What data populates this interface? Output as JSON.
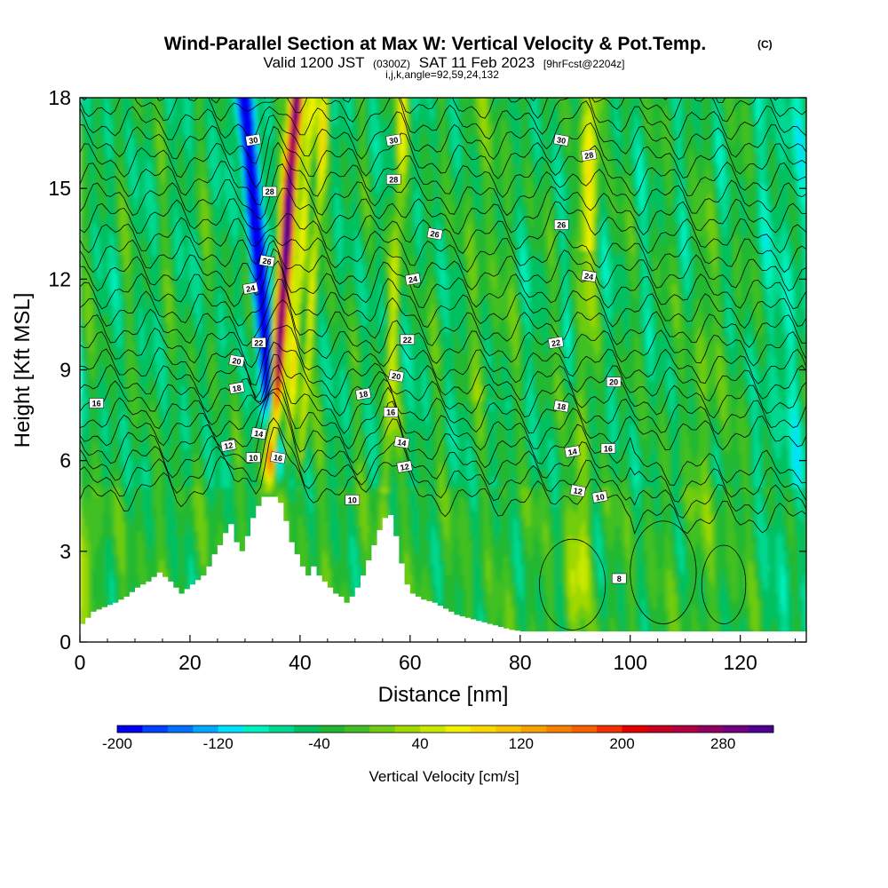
{
  "chart_data": {
    "type": "heatmap",
    "title": "Wind-Parallel Section at Max W: Vertical Velocity & Pot.Temp.",
    "title_mark": "(C)",
    "subtitle": {
      "main_a": "Valid 1200 JST",
      "zulu": "(0300Z)",
      "main_b": "SAT 11 Feb 2023",
      "forecast": "[9hrFcst@2204z]",
      "indices": "i,j,k,angle=92,59,24,132"
    },
    "xlabel": "Distance [nm]",
    "ylabel": "Height [Kft MSL]",
    "xlim": [
      0,
      132
    ],
    "ylim": [
      0,
      18
    ],
    "x_ticks": [
      0,
      20,
      40,
      60,
      80,
      100,
      120
    ],
    "y_ticks": [
      0,
      3,
      6,
      9,
      12,
      15,
      18
    ],
    "grid": false,
    "colorbar": {
      "label": "Vertical Velocity [cm/s]",
      "placement": "bottom",
      "min": -200,
      "max": 320,
      "step": 20,
      "tick_labels": [
        "-200",
        "-120",
        "-40",
        "40",
        "120",
        "200",
        "280"
      ],
      "tick_values": [
        -200,
        -120,
        -40,
        40,
        120,
        200,
        280
      ],
      "colors": [
        "#0000f0",
        "#0040ff",
        "#0070ff",
        "#00a8ff",
        "#00e0ff",
        "#00f0c0",
        "#00d890",
        "#00c060",
        "#20b830",
        "#40c020",
        "#70cc10",
        "#a0d800",
        "#c8e800",
        "#f0f000",
        "#f8d800",
        "#f8c000",
        "#f8a000",
        "#f88000",
        "#f86000",
        "#f03000",
        "#e00000",
        "#c80020",
        "#b00040",
        "#900060",
        "#700080",
        "#500090"
      ]
    },
    "potential_temperature_labels": [
      {
        "text": "30",
        "x": 31.5,
        "y": 16.6
      },
      {
        "text": "28",
        "x": 34.5,
        "y": 14.9
      },
      {
        "text": "26",
        "x": 34,
        "y": 12.6
      },
      {
        "text": "24",
        "x": 31,
        "y": 11.7
      },
      {
        "text": "22",
        "x": 32.5,
        "y": 9.9
      },
      {
        "text": "20",
        "x": 28.5,
        "y": 9.3
      },
      {
        "text": "18",
        "x": 28.5,
        "y": 8.4
      },
      {
        "text": "16",
        "x": 3,
        "y": 7.9
      },
      {
        "text": "14",
        "x": 32.5,
        "y": 6.9
      },
      {
        "text": "12",
        "x": 27,
        "y": 6.5
      },
      {
        "text": "10",
        "x": 31.5,
        "y": 6.1
      },
      {
        "text": "16",
        "x": 36,
        "y": 6.1
      },
      {
        "text": "30",
        "x": 57,
        "y": 16.6
      },
      {
        "text": "28",
        "x": 57,
        "y": 15.3
      },
      {
        "text": "26",
        "x": 64.5,
        "y": 13.5
      },
      {
        "text": "24",
        "x": 60.5,
        "y": 12.0
      },
      {
        "text": "22",
        "x": 59.5,
        "y": 10.0
      },
      {
        "text": "20",
        "x": 57.5,
        "y": 8.8
      },
      {
        "text": "18",
        "x": 51.5,
        "y": 8.2
      },
      {
        "text": "16",
        "x": 56.5,
        "y": 7.6
      },
      {
        "text": "14",
        "x": 58.5,
        "y": 6.6
      },
      {
        "text": "12",
        "x": 59,
        "y": 5.8
      },
      {
        "text": "10",
        "x": 49.5,
        "y": 4.7
      },
      {
        "text": "30",
        "x": 87.5,
        "y": 16.6
      },
      {
        "text": "28",
        "x": 92.5,
        "y": 16.1
      },
      {
        "text": "26",
        "x": 87.5,
        "y": 13.8
      },
      {
        "text": "24",
        "x": 92.5,
        "y": 12.1
      },
      {
        "text": "22",
        "x": 86.5,
        "y": 9.9
      },
      {
        "text": "20",
        "x": 97,
        "y": 8.6
      },
      {
        "text": "18",
        "x": 87.5,
        "y": 7.8
      },
      {
        "text": "14",
        "x": 89.5,
        "y": 6.3
      },
      {
        "text": "16",
        "x": 96,
        "y": 6.4
      },
      {
        "text": "12",
        "x": 90.5,
        "y": 5.0
      },
      {
        "text": "10",
        "x": 94.5,
        "y": 4.8
      },
      {
        "text": "8",
        "x": 98,
        "y": 2.1
      }
    ],
    "terrain_profile": {
      "x": [
        0,
        2,
        6,
        8,
        10,
        12,
        14,
        16,
        18,
        20,
        22,
        23,
        24,
        25,
        26,
        27,
        28,
        29,
        30,
        31,
        32,
        33,
        34,
        35,
        36,
        37,
        38,
        39,
        40,
        41,
        42,
        43,
        44,
        45,
        46,
        47,
        48,
        49,
        50,
        51,
        52,
        53,
        54,
        55,
        56,
        57,
        58,
        59,
        60,
        62,
        64,
        66,
        68,
        70,
        72,
        74,
        76,
        78,
        80,
        132
      ],
      "height": [
        0.6,
        1.0,
        1.3,
        1.5,
        1.8,
        2.0,
        2.3,
        2.0,
        1.6,
        1.9,
        2.2,
        2.5,
        2.9,
        3.2,
        3.6,
        3.9,
        3.3,
        3.0,
        3.5,
        4.1,
        4.5,
        4.8,
        4.8,
        4.8,
        4.6,
        4.0,
        3.3,
        2.9,
        2.5,
        2.2,
        2.5,
        2.2,
        2.0,
        1.8,
        1.6,
        1.5,
        1.3,
        1.5,
        1.8,
        2.2,
        2.7,
        3.2,
        3.7,
        4.1,
        4.2,
        3.5,
        2.6,
        1.9,
        1.6,
        1.4,
        1.3,
        1.1,
        0.9,
        0.8,
        0.7,
        0.6,
        0.5,
        0.4,
        0.35,
        0.35
      ]
    }
  }
}
